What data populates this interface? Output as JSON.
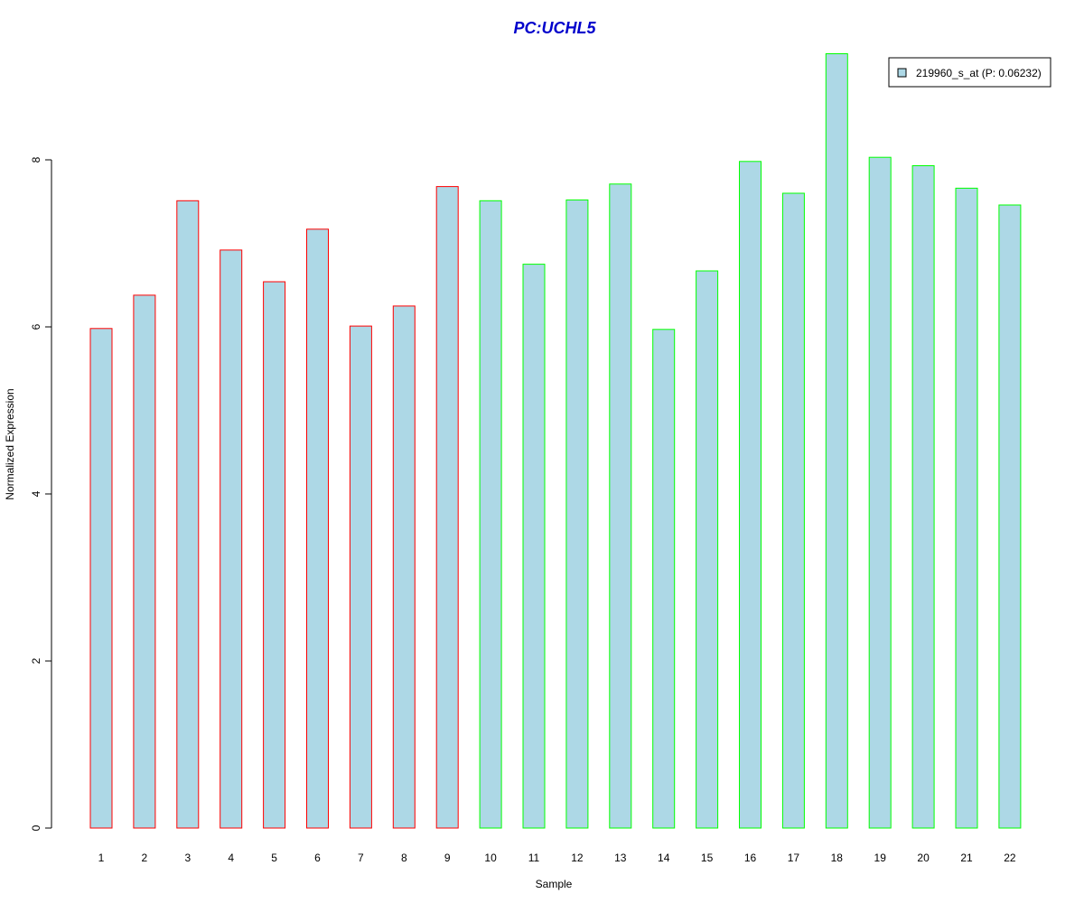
{
  "chart_data": {
    "type": "bar",
    "title": "PC:UCHL5",
    "title_color": "#0000CC",
    "xlabel": "Sample",
    "ylabel": "Normalized Expression",
    "ylim": [
      0,
      9.3
    ],
    "yticks": [
      "0",
      "2",
      "4",
      "6",
      "8"
    ],
    "ytick_values": [
      0,
      2,
      4,
      6,
      8
    ],
    "grid": false,
    "legend": {
      "position": "top-right",
      "entries": [
        "219960_s_at (P: 0.06232)"
      ]
    },
    "fill_color": "#ADD8E6",
    "group_colors": {
      "group1": "#FF0000",
      "group2": "#00FF00"
    },
    "categories": [
      "1",
      "2",
      "3",
      "4",
      "5",
      "6",
      "7",
      "8",
      "9",
      "10",
      "11",
      "12",
      "13",
      "14",
      "15",
      "16",
      "17",
      "18",
      "19",
      "20",
      "21",
      "22"
    ],
    "groups": [
      "group1",
      "group1",
      "group1",
      "group1",
      "group1",
      "group1",
      "group1",
      "group1",
      "group1",
      "group2",
      "group2",
      "group2",
      "group2",
      "group2",
      "group2",
      "group2",
      "group2",
      "group2",
      "group2",
      "group2",
      "group2",
      "group2"
    ],
    "series": [
      {
        "name": "219960_s_at (P: 0.06232)",
        "values": [
          5.98,
          6.38,
          7.51,
          6.92,
          6.54,
          7.17,
          6.01,
          6.25,
          7.68,
          7.51,
          6.75,
          7.52,
          7.71,
          5.97,
          6.67,
          7.98,
          7.6,
          9.27,
          8.03,
          7.93,
          7.66,
          7.46
        ]
      }
    ]
  }
}
